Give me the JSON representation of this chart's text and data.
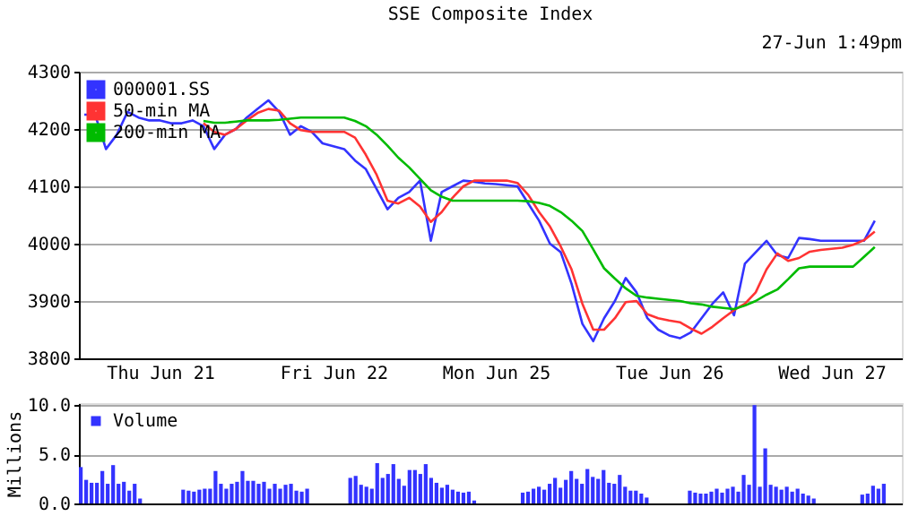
{
  "chart_data": [
    {
      "type": "line",
      "title": "SSE Composite Index",
      "annotations": [
        "27-Jun 1:49pm"
      ],
      "ylim": [
        3800,
        4300
      ],
      "yticks": [
        3800,
        3900,
        4000,
        4100,
        4200,
        4300
      ],
      "categories": [
        null,
        null,
        null,
        null,
        null,
        null,
        null,
        "Thu Jun 21",
        null,
        null,
        null,
        null,
        null,
        null,
        null,
        null,
        null,
        null,
        null,
        null,
        null,
        null,
        null,
        "Fri Jun 22",
        null,
        null,
        null,
        null,
        null,
        null,
        null,
        null,
        null,
        null,
        null,
        null,
        null,
        null,
        "Mon Jun 25",
        null,
        null,
        null,
        null,
        null,
        null,
        null,
        null,
        null,
        null,
        null,
        null,
        null,
        null,
        null,
        "Tue Jun 26",
        null,
        null,
        null,
        null,
        null,
        null,
        null,
        null,
        null,
        null,
        null,
        null,
        null,
        null,
        "Wed Jun 27",
        null,
        null,
        null,
        null,
        null,
        null
      ],
      "grid": "y",
      "legend": "top left",
      "marker": "none",
      "line_style": "solid",
      "series": [
        {
          "name": "000001.SS",
          "color": "#3333ff",
          "values": [
            4225,
            4225,
            4165,
            4190,
            4230,
            4220,
            4215,
            4215,
            4210,
            4210,
            4215,
            4205,
            4165,
            4190,
            4200,
            4220,
            4235,
            4250,
            4230,
            4190,
            4205,
            4195,
            4175,
            4170,
            4165,
            4145,
            4130,
            4095,
            4060,
            4080,
            4090,
            4110,
            4005,
            4090,
            4100,
            4110,
            4108,
            4105,
            4104,
            4102,
            4100,
            4070,
            4040,
            4000,
            3985,
            3930,
            3860,
            3830,
            3870,
            3900,
            3940,
            3915,
            3870,
            3850,
            3840,
            3835,
            3845,
            3870,
            3895,
            3915,
            3875,
            3965,
            3985,
            4005,
            3980,
            3975,
            4010,
            4008,
            4005,
            4005,
            4005,
            4005,
            4005,
            4040,
            null,
            null
          ]
        },
        {
          "name": "50-min MA",
          "color": "#ff3333",
          "values": [
            null,
            null,
            null,
            null,
            null,
            null,
            null,
            null,
            null,
            null,
            null,
            4210,
            4195,
            4190,
            4200,
            4215,
            4228,
            4235,
            4232,
            4210,
            4198,
            4195,
            4195,
            4195,
            4195,
            4185,
            4155,
            4120,
            4075,
            4070,
            4080,
            4065,
            4038,
            4055,
            4080,
            4100,
            4110,
            4110,
            4110,
            4110,
            4106,
            4085,
            4055,
            4030,
            3995,
            3955,
            3895,
            3850,
            3850,
            3870,
            3898,
            3900,
            3877,
            3870,
            3866,
            3863,
            3852,
            3843,
            3855,
            3870,
            3884,
            3895,
            3915,
            3955,
            3983,
            3970,
            3975,
            3986,
            3989,
            3991,
            3993,
            3998,
            4006,
            4021,
            null,
            null
          ]
        },
        {
          "name": "200-min MA",
          "color": "#00bb00",
          "values": [
            null,
            null,
            null,
            null,
            null,
            null,
            null,
            null,
            null,
            null,
            null,
            4214,
            4211,
            4211,
            4213,
            4215,
            4215,
            4215,
            4216,
            4218,
            4220,
            4220,
            4220,
            4220,
            4220,
            4214,
            4205,
            4190,
            4171,
            4150,
            4133,
            4113,
            4093,
            4082,
            4075,
            4075,
            4075,
            4075,
            4075,
            4075,
            4075,
            4074,
            4071,
            4066,
            4055,
            4040,
            4022,
            3990,
            3957,
            3939,
            3922,
            3909,
            3906,
            3904,
            3902,
            3900,
            3896,
            3894,
            3890,
            3888,
            3886,
            3892,
            3900,
            3911,
            3920,
            3938,
            3957,
            3960,
            3960,
            3960,
            3960,
            3960,
            3977,
            3994,
            null,
            null
          ]
        }
      ]
    },
    {
      "type": "bar",
      "ylabel": "Millions",
      "ylim": [
        0,
        10.2
      ],
      "categories": [
        null,
        null,
        null,
        null,
        null,
        null,
        null,
        null,
        null,
        null,
        null,
        null,
        null,
        null,
        null,
        null,
        null,
        null,
        null,
        null,
        null,
        null,
        null,
        null,
        null,
        null,
        null,
        null,
        null,
        null,
        null,
        null,
        null,
        null,
        null,
        null,
        null,
        null,
        null,
        null,
        null,
        null,
        null,
        null,
        null,
        null,
        null,
        null,
        null,
        null,
        null,
        null,
        null,
        null,
        null,
        null,
        null,
        null,
        null,
        null,
        null,
        null,
        null,
        null,
        null,
        null,
        null,
        null,
        null,
        null,
        null,
        null,
        null,
        null,
        null,
        null,
        null,
        null,
        null,
        null,
        null,
        null,
        null,
        null,
        null,
        null,
        null,
        null,
        null,
        null,
        null,
        null,
        null,
        null,
        null,
        null,
        null,
        null,
        null,
        null,
        null,
        null,
        null,
        null,
        null,
        null,
        null,
        null,
        null,
        null,
        null,
        null,
        null,
        null,
        null,
        null,
        null,
        null,
        null,
        null,
        null,
        null,
        null,
        null,
        null,
        null,
        null,
        null,
        null,
        null,
        null,
        null,
        null,
        null,
        null,
        null,
        null,
        null,
        null,
        null,
        null,
        null,
        null,
        null,
        null,
        null,
        null,
        null,
        null,
        null,
        null,
        null,
        null
      ],
      "yticks": [
        {
          "value": 0,
          "label": "0.0"
        },
        {
          "value": 5,
          "label": "5.0"
        },
        {
          "value": 10,
          "label": "10.0"
        }
      ],
      "tick_labels": "y",
      "grid": "y",
      "legend": "top left",
      "series": [
        {
          "name": "Volume",
          "color": "#3333ff",
          "values": [
            3.7,
            2.4,
            2.1,
            2.1,
            3.3,
            2.0,
            3.9,
            2.0,
            2.2,
            1.3,
            2.0,
            0.5,
            null,
            null,
            null,
            null,
            null,
            null,
            null,
            1.4,
            1.3,
            1.2,
            1.4,
            1.5,
            1.5,
            3.3,
            2.0,
            1.5,
            2.0,
            2.2,
            3.3,
            2.3,
            2.3,
            2.0,
            2.2,
            1.5,
            2.0,
            1.5,
            1.9,
            2.0,
            1.3,
            1.2,
            1.5,
            null,
            null,
            null,
            null,
            null,
            null,
            null,
            2.6,
            2.8,
            1.9,
            1.7,
            1.5,
            4.1,
            2.6,
            3.0,
            4.0,
            2.5,
            1.8,
            3.4,
            3.4,
            3.0,
            4.0,
            2.6,
            2.1,
            1.6,
            1.9,
            1.4,
            1.2,
            1.1,
            1.2,
            0.3,
            null,
            null,
            null,
            null,
            null,
            null,
            null,
            null,
            1.1,
            1.2,
            1.5,
            1.7,
            1.4,
            2.0,
            2.6,
            1.6,
            2.4,
            3.3,
            2.5,
            2.0,
            3.5,
            2.7,
            2.5,
            3.4,
            2.1,
            2.0,
            2.9,
            1.7,
            1.3,
            1.3,
            1.0,
            0.6,
            null,
            null,
            null,
            null,
            null,
            null,
            null,
            1.3,
            1.1,
            1.0,
            1.0,
            1.2,
            1.5,
            1.1,
            1.5,
            1.7,
            1.2,
            2.9,
            1.9,
            10.0,
            1.7,
            5.6,
            1.9,
            1.7,
            1.4,
            1.7,
            1.2,
            1.5,
            1.0,
            0.8,
            0.5,
            null,
            null,
            null,
            null,
            null,
            null,
            null,
            null,
            0.9,
            1.0,
            1.8,
            1.5,
            2.0,
            null,
            null,
            null
          ]
        }
      ]
    }
  ]
}
